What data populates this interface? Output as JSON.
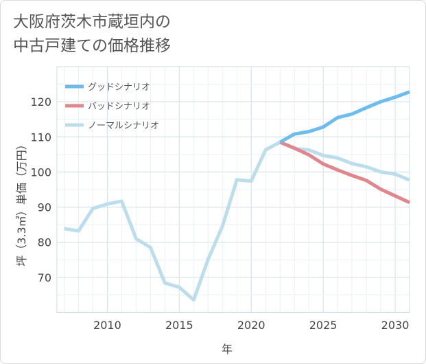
{
  "title_lines": [
    "大阪府茨木市蔵垣内の",
    "中古戸建ての価格推移"
  ],
  "chart_data": {
    "type": "line",
    "title": "大阪府茨木市蔵垣内の中古戸建ての価格推移",
    "xlabel": "年",
    "ylabel": "坪（3.3㎡）単価（万円）",
    "xlim": [
      2006.5,
      2031
    ],
    "ylim": [
      60,
      130
    ],
    "xticks": [
      2010,
      2015,
      2020,
      2025,
      2030
    ],
    "yticks": [
      70,
      80,
      90,
      100,
      110,
      120
    ],
    "grid": true,
    "legend_position": "top-left",
    "series": [
      {
        "name": "グッドシナリオ",
        "color": "#6cbcee",
        "x": [
          2022,
          2023,
          2024,
          2025,
          2026,
          2027,
          2028,
          2029,
          2030,
          2031
        ],
        "values": [
          108.5,
          110.8,
          111.5,
          112.8,
          115.5,
          116.5,
          118.3,
          120.0,
          121.3,
          122.8
        ]
      },
      {
        "name": "バッドシナリオ",
        "color": "#e0868c",
        "x": [
          2022,
          2023,
          2024,
          2025,
          2026,
          2027,
          2028,
          2029,
          2030,
          2031
        ],
        "values": [
          108.5,
          106.8,
          104.9,
          102.3,
          100.6,
          99.0,
          97.6,
          95.1,
          93.2,
          91.3
        ]
      },
      {
        "name": "ノーマルシナリオ",
        "color": "#bcdeec",
        "x": [
          2007,
          2008,
          2009,
          2010,
          2011,
          2012,
          2013,
          2014,
          2015,
          2016,
          2017,
          2018,
          2019,
          2020,
          2021,
          2022,
          2023,
          2024,
          2025,
          2026,
          2027,
          2028,
          2029,
          2030,
          2031
        ],
        "values": [
          83.9,
          83.2,
          89.6,
          90.9,
          91.7,
          81.0,
          78.5,
          68.4,
          67.2,
          63.6,
          75.1,
          84.6,
          97.8,
          97.4,
          106.3,
          108.5,
          106.7,
          106.3,
          104.7,
          104.0,
          102.4,
          101.5,
          100.0,
          99.4,
          97.7
        ]
      }
    ]
  }
}
